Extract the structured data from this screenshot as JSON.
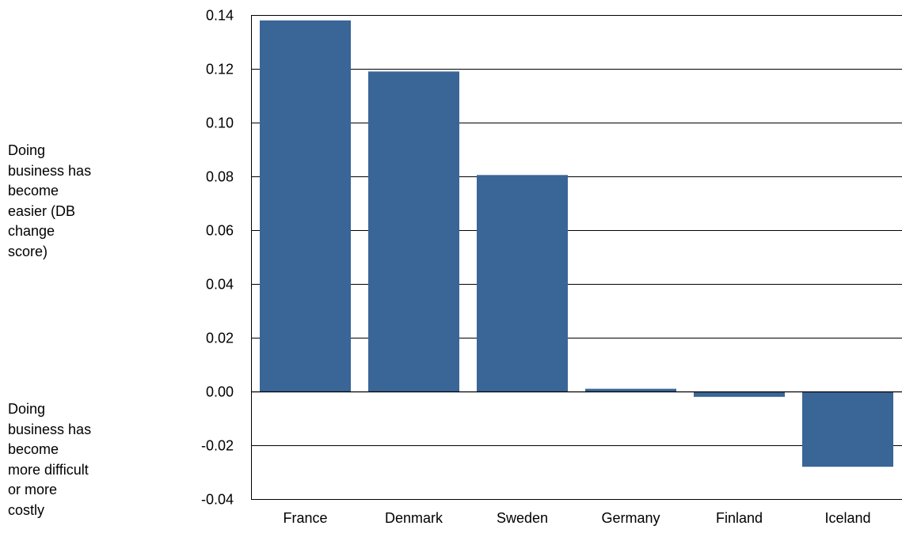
{
  "chart_data": {
    "type": "bar",
    "categories": [
      "France",
      "Denmark",
      "Sweden",
      "Germany",
      "Finland",
      "Iceland"
    ],
    "values": [
      0.138,
      0.119,
      0.0805,
      0.001,
      -0.002,
      -0.028
    ],
    "ylim": [
      -0.04,
      0.14
    ],
    "yticks": [
      "0.14",
      "0.12",
      "0.10",
      "0.08",
      "0.06",
      "0.04",
      "0.02",
      "0.00",
      "-0.02",
      "-0.04"
    ],
    "grid": true,
    "bar_color": "#3a6597",
    "annotations": {
      "upper": [
        "Doing",
        "business has",
        "become",
        "easier (DB",
        "change",
        "score)"
      ],
      "lower": [
        "Doing",
        "business has",
        "become",
        "more difficult",
        "or more",
        "costly"
      ]
    }
  }
}
